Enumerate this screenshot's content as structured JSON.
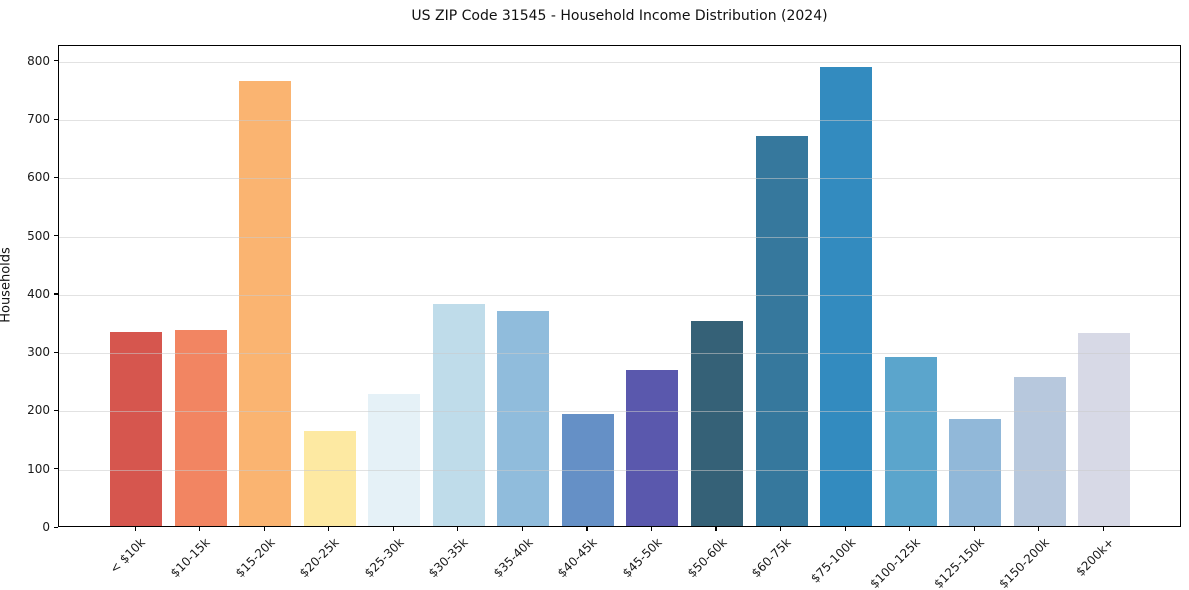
{
  "chart_data": {
    "type": "bar",
    "title": "US ZIP Code 31545 - Household Income Distribution (2024)",
    "xlabel": "",
    "ylabel": "Households",
    "categories": [
      "< $10k",
      "$10-15k",
      "$15-20k",
      "$20-25k",
      "$25-30k",
      "$30-35k",
      "$35-40k",
      "$40-45k",
      "$45-50k",
      "$50-60k",
      "$60-75k",
      "$75-100k",
      "$100-125k",
      "$125-150k",
      "$150-200k",
      "$200k+"
    ],
    "values": [
      333,
      336,
      763,
      163,
      226,
      381,
      369,
      193,
      267,
      352,
      669,
      788,
      290,
      184,
      256,
      331
    ],
    "bar_colors": [
      "#d6564e",
      "#f28562",
      "#fab471",
      "#fde9a2",
      "#e5f1f7",
      "#bfdcea",
      "#90bcdc",
      "#6590c6",
      "#5a58ad",
      "#356177",
      "#36789d",
      "#338bbf",
      "#5ba5cc",
      "#91b8d9",
      "#b7c8dd",
      "#d7d9e6"
    ],
    "ylim": [
      0,
      827
    ],
    "yticks": [
      0,
      100,
      200,
      300,
      400,
      500,
      600,
      700,
      800
    ],
    "grid": "horizontal",
    "legend": "none",
    "x_tick_rotation": 45,
    "background_color": "#ffffff",
    "spine_color": "#000000"
  }
}
